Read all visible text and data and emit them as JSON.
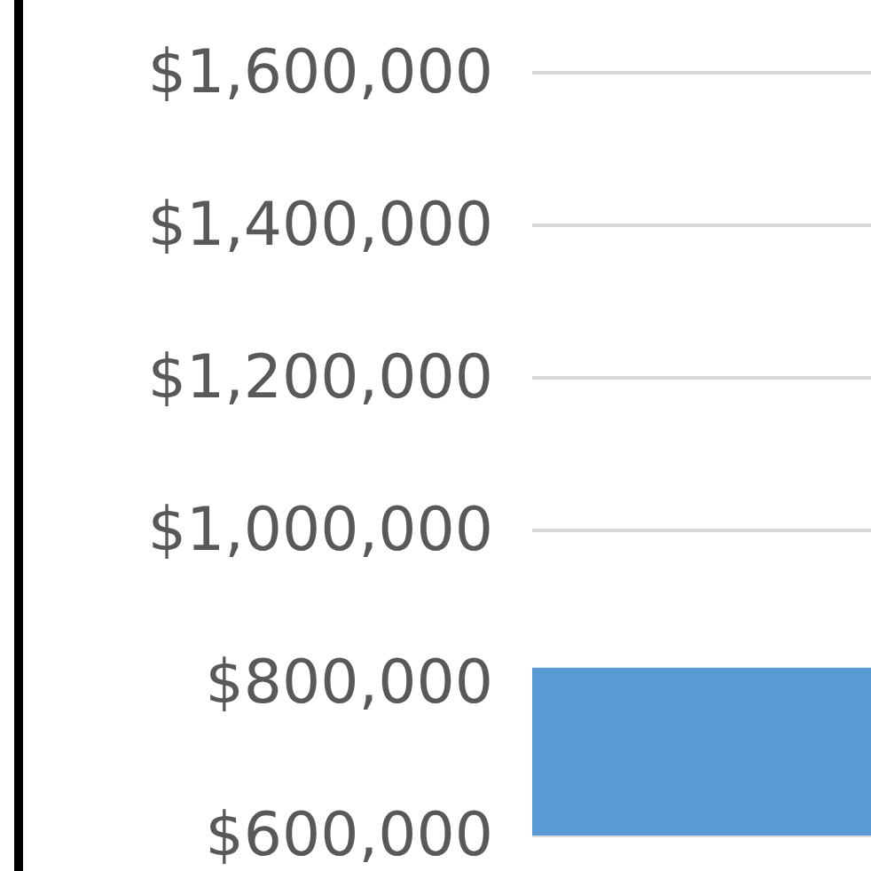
{
  "chart_data": {
    "type": "bar",
    "categories": [
      null
    ],
    "series": [
      {
        "color": "#5b9bd5",
        "values": [
          820000
        ]
      }
    ],
    "ylim": [
      600000,
      1600000
    ],
    "yticks": [
      {
        "value": 600000,
        "label": "$600,000"
      },
      {
        "value": 800000,
        "label": "$800,000"
      },
      {
        "value": 1000000,
        "label": "$1,000,000"
      },
      {
        "value": 1200000,
        "label": "$1,200,000"
      },
      {
        "value": 1400000,
        "label": "$1,400,000"
      },
      {
        "value": 1600000,
        "label": "$1,600,000"
      }
    ],
    "grid": "y"
  }
}
